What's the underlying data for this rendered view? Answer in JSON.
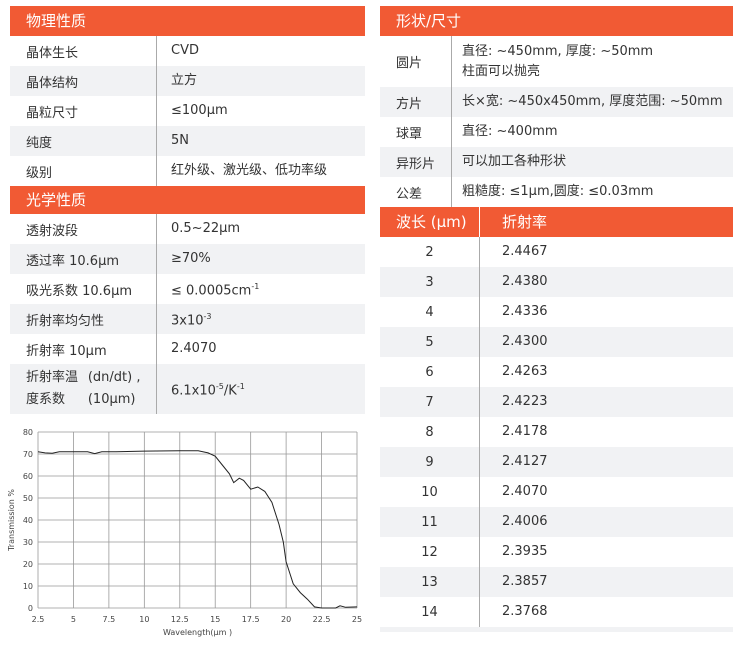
{
  "physical": {
    "title": "物理性质",
    "rows": [
      {
        "k": "晶体生长",
        "v": "CVD"
      },
      {
        "k": "晶体结构",
        "v": "立方"
      },
      {
        "k": "晶粒尺寸",
        "v": "≤100μm"
      },
      {
        "k": "纯度",
        "v": "5N"
      },
      {
        "k": "级别",
        "v": "红外级、激光级、低功率级"
      }
    ]
  },
  "optical": {
    "title": "光学性质",
    "rows": [
      {
        "k": "透射波段",
        "v": "0.5~22μm"
      },
      {
        "k": "透过率 10.6μm",
        "v": "≥70%"
      },
      {
        "k": "吸光系数 10.6μm",
        "v": "≤ 0.0005cm",
        "sup": "-1"
      },
      {
        "k": "折射率均匀性",
        "v": "3x10",
        "sup": "-3"
      },
      {
        "k": "折射率 10μm",
        "v": "2.4070"
      },
      {
        "k": "折射率温度系数",
        "k2": "(dn/dt) ,(10μm)",
        "v": "6.1x10",
        "sup": "-5",
        "v2": "/K",
        "sup2": "-1"
      }
    ]
  },
  "shape": {
    "title": "形状/尺寸",
    "rows": [
      {
        "k": "圆片",
        "v": "直径: ~450mm, 厚度: ~50mm",
        "v2": "柱面可以抛亮"
      },
      {
        "k": "方片",
        "v": "长×宽: ~450x450mm, 厚度范围: ~50mm"
      },
      {
        "k": "球罩",
        "v": "直径: ~400mm"
      },
      {
        "k": "异形片",
        "v": "可以加工各种形状"
      },
      {
        "k": "公差",
        "v": "粗糙度: ≤1μm,圆度: ≤0.03mm"
      }
    ]
  },
  "index_table": {
    "headers": [
      "波长 (μm)",
      "折射率"
    ],
    "rows": [
      [
        "2",
        "2.4467"
      ],
      [
        "3",
        "2.4380"
      ],
      [
        "4",
        "2.4336"
      ],
      [
        "5",
        "2.4300"
      ],
      [
        "6",
        "2.4263"
      ],
      [
        "7",
        "2.4223"
      ],
      [
        "8",
        "2.4178"
      ],
      [
        "9",
        "2.4127"
      ],
      [
        "10",
        "2.4070"
      ],
      [
        "11",
        "2.4006"
      ],
      [
        "12",
        "2.3935"
      ],
      [
        "13",
        "2.3857"
      ],
      [
        "14",
        "2.3768"
      ]
    ]
  },
  "colors": {
    "accent": "#f15a34",
    "stripe": "#f1f2f4"
  },
  "chart_data": {
    "type": "line",
    "xlabel": "Wavelength(μm )",
    "ylabel": "Transmission %",
    "xlim": [
      2.5,
      25
    ],
    "ylim": [
      0,
      80
    ],
    "grid": true,
    "xticks": [
      "2.5",
      "5",
      "7.5",
      "10",
      "12.5",
      "15",
      "17.5",
      "20",
      "22.5",
      "25"
    ],
    "yticks": [
      "0",
      "10",
      "20",
      "30",
      "40",
      "50",
      "60",
      "70",
      "80"
    ],
    "points": [
      [
        2.5,
        71
      ],
      [
        3,
        70.5
      ],
      [
        3.5,
        70.3
      ],
      [
        4,
        71
      ],
      [
        5,
        71
      ],
      [
        6,
        71
      ],
      [
        6.5,
        70.2
      ],
      [
        7,
        71
      ],
      [
        8,
        71
      ],
      [
        10,
        71.3
      ],
      [
        12.5,
        71.5
      ],
      [
        13.8,
        71.5
      ],
      [
        14.5,
        70.5
      ],
      [
        15,
        69
      ],
      [
        15.5,
        65
      ],
      [
        16,
        61
      ],
      [
        16.3,
        57
      ],
      [
        16.7,
        59
      ],
      [
        17,
        58
      ],
      [
        17.5,
        54
      ],
      [
        18,
        55
      ],
      [
        18.5,
        53
      ],
      [
        19,
        48
      ],
      [
        19.5,
        38
      ],
      [
        19.8,
        30
      ],
      [
        20,
        21
      ],
      [
        20.5,
        11
      ],
      [
        21,
        7
      ],
      [
        21.5,
        4
      ],
      [
        22,
        0.5
      ],
      [
        22.5,
        0
      ],
      [
        23.5,
        0
      ],
      [
        23.8,
        1
      ],
      [
        24.2,
        0.3
      ],
      [
        25,
        0.5
      ]
    ]
  }
}
